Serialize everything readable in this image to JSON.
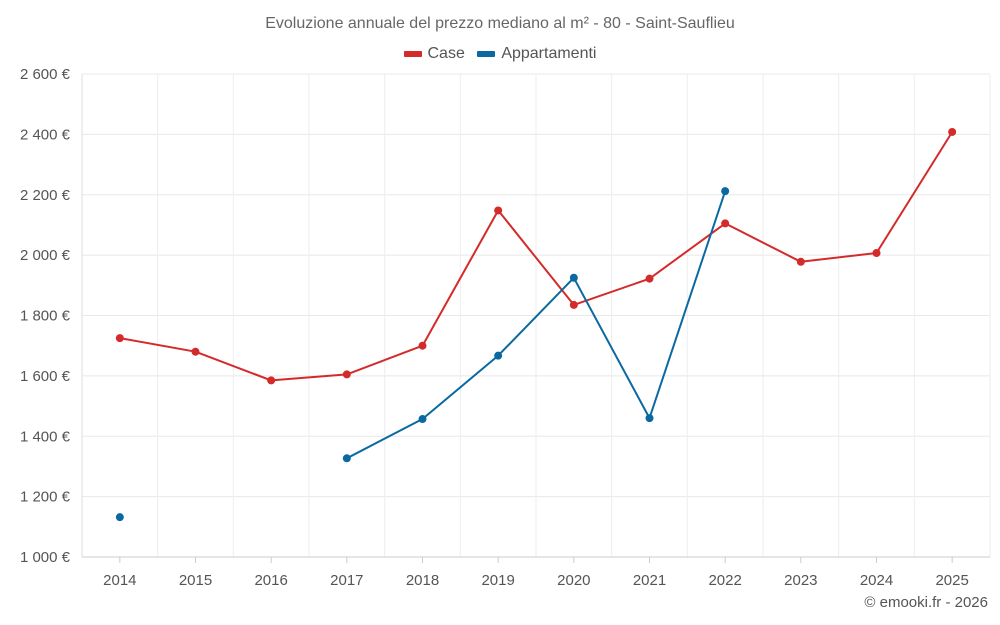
{
  "chart_data": {
    "type": "line",
    "title": "Evoluzione annuale del prezzo mediano al m² - 80 - Saint-Sauflieu",
    "categories": [
      "2014",
      "2015",
      "2016",
      "2017",
      "2018",
      "2019",
      "2020",
      "2021",
      "2022",
      "2023",
      "2024",
      "2025"
    ],
    "y_ticks": [
      {
        "value": 1000,
        "label": "1 000 €"
      },
      {
        "value": 1200,
        "label": "1 200 €"
      },
      {
        "value": 1400,
        "label": "1 400 €"
      },
      {
        "value": 1600,
        "label": "1 600 €"
      },
      {
        "value": 1800,
        "label": "1 800 €"
      },
      {
        "value": 2000,
        "label": "2 000 €"
      },
      {
        "value": 2200,
        "label": "2 200 €"
      },
      {
        "value": 2400,
        "label": "2 400 €"
      },
      {
        "value": 2600,
        "label": "2 600 €"
      }
    ],
    "ylim": [
      1000,
      2600
    ],
    "xlabel": "",
    "ylabel": "",
    "grid": true,
    "legend_position": "top-center",
    "series": [
      {
        "name": "Case",
        "color": "#d42a2a",
        "values": [
          1725,
          1680,
          1585,
          1605,
          1700,
          2148,
          1835,
          1922,
          2105,
          1978,
          2007,
          2408
        ]
      },
      {
        "name": "Appartamenti",
        "color": "#0a69a0",
        "values": [
          1132,
          null,
          null,
          1327,
          1457,
          1667,
          1925,
          1460,
          2212,
          null,
          null,
          null
        ]
      }
    ]
  },
  "credit": "© emooki.fr - 2026"
}
